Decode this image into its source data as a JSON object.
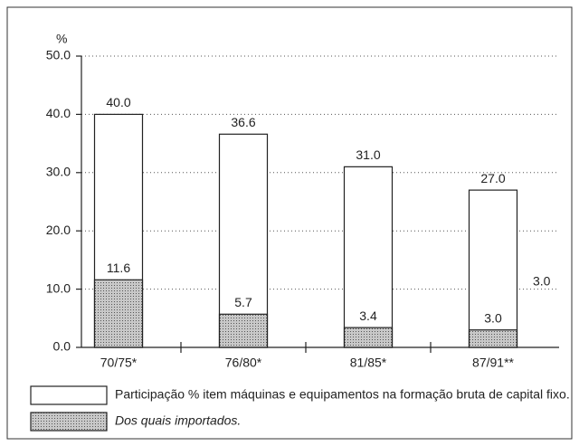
{
  "chart_data": {
    "type": "bar",
    "y_label": "%",
    "categories": [
      "70/75*",
      "76/80*",
      "81/85*",
      "87/91**"
    ],
    "series": [
      {
        "name": "Participação % item máquinas e equipamentos na formação bruta de capital fixo.",
        "color": "#ffffff",
        "values": [
          40.0,
          36.6,
          31.0,
          27.0
        ],
        "value_labels": [
          "40.0",
          "36.6",
          "31.0",
          "27.0"
        ]
      },
      {
        "name": "Dos quais importados.",
        "color": "#a8a8a8",
        "values": [
          11.6,
          5.7,
          3.4,
          3.0
        ],
        "value_labels": [
          "11.6",
          "5.7",
          "3.4",
          "3.0"
        ]
      }
    ],
    "annotation": "3.0",
    "ylim": [
      0,
      50
    ],
    "yticks": [
      {
        "value": 0,
        "label": "0.0"
      },
      {
        "value": 10,
        "label": "10.0"
      },
      {
        "value": 20,
        "label": "20.0"
      },
      {
        "value": 30,
        "label": "30.0"
      },
      {
        "value": 40,
        "label": "40.0"
      },
      {
        "value": 50,
        "label": "50.0"
      }
    ],
    "grid": true
  }
}
